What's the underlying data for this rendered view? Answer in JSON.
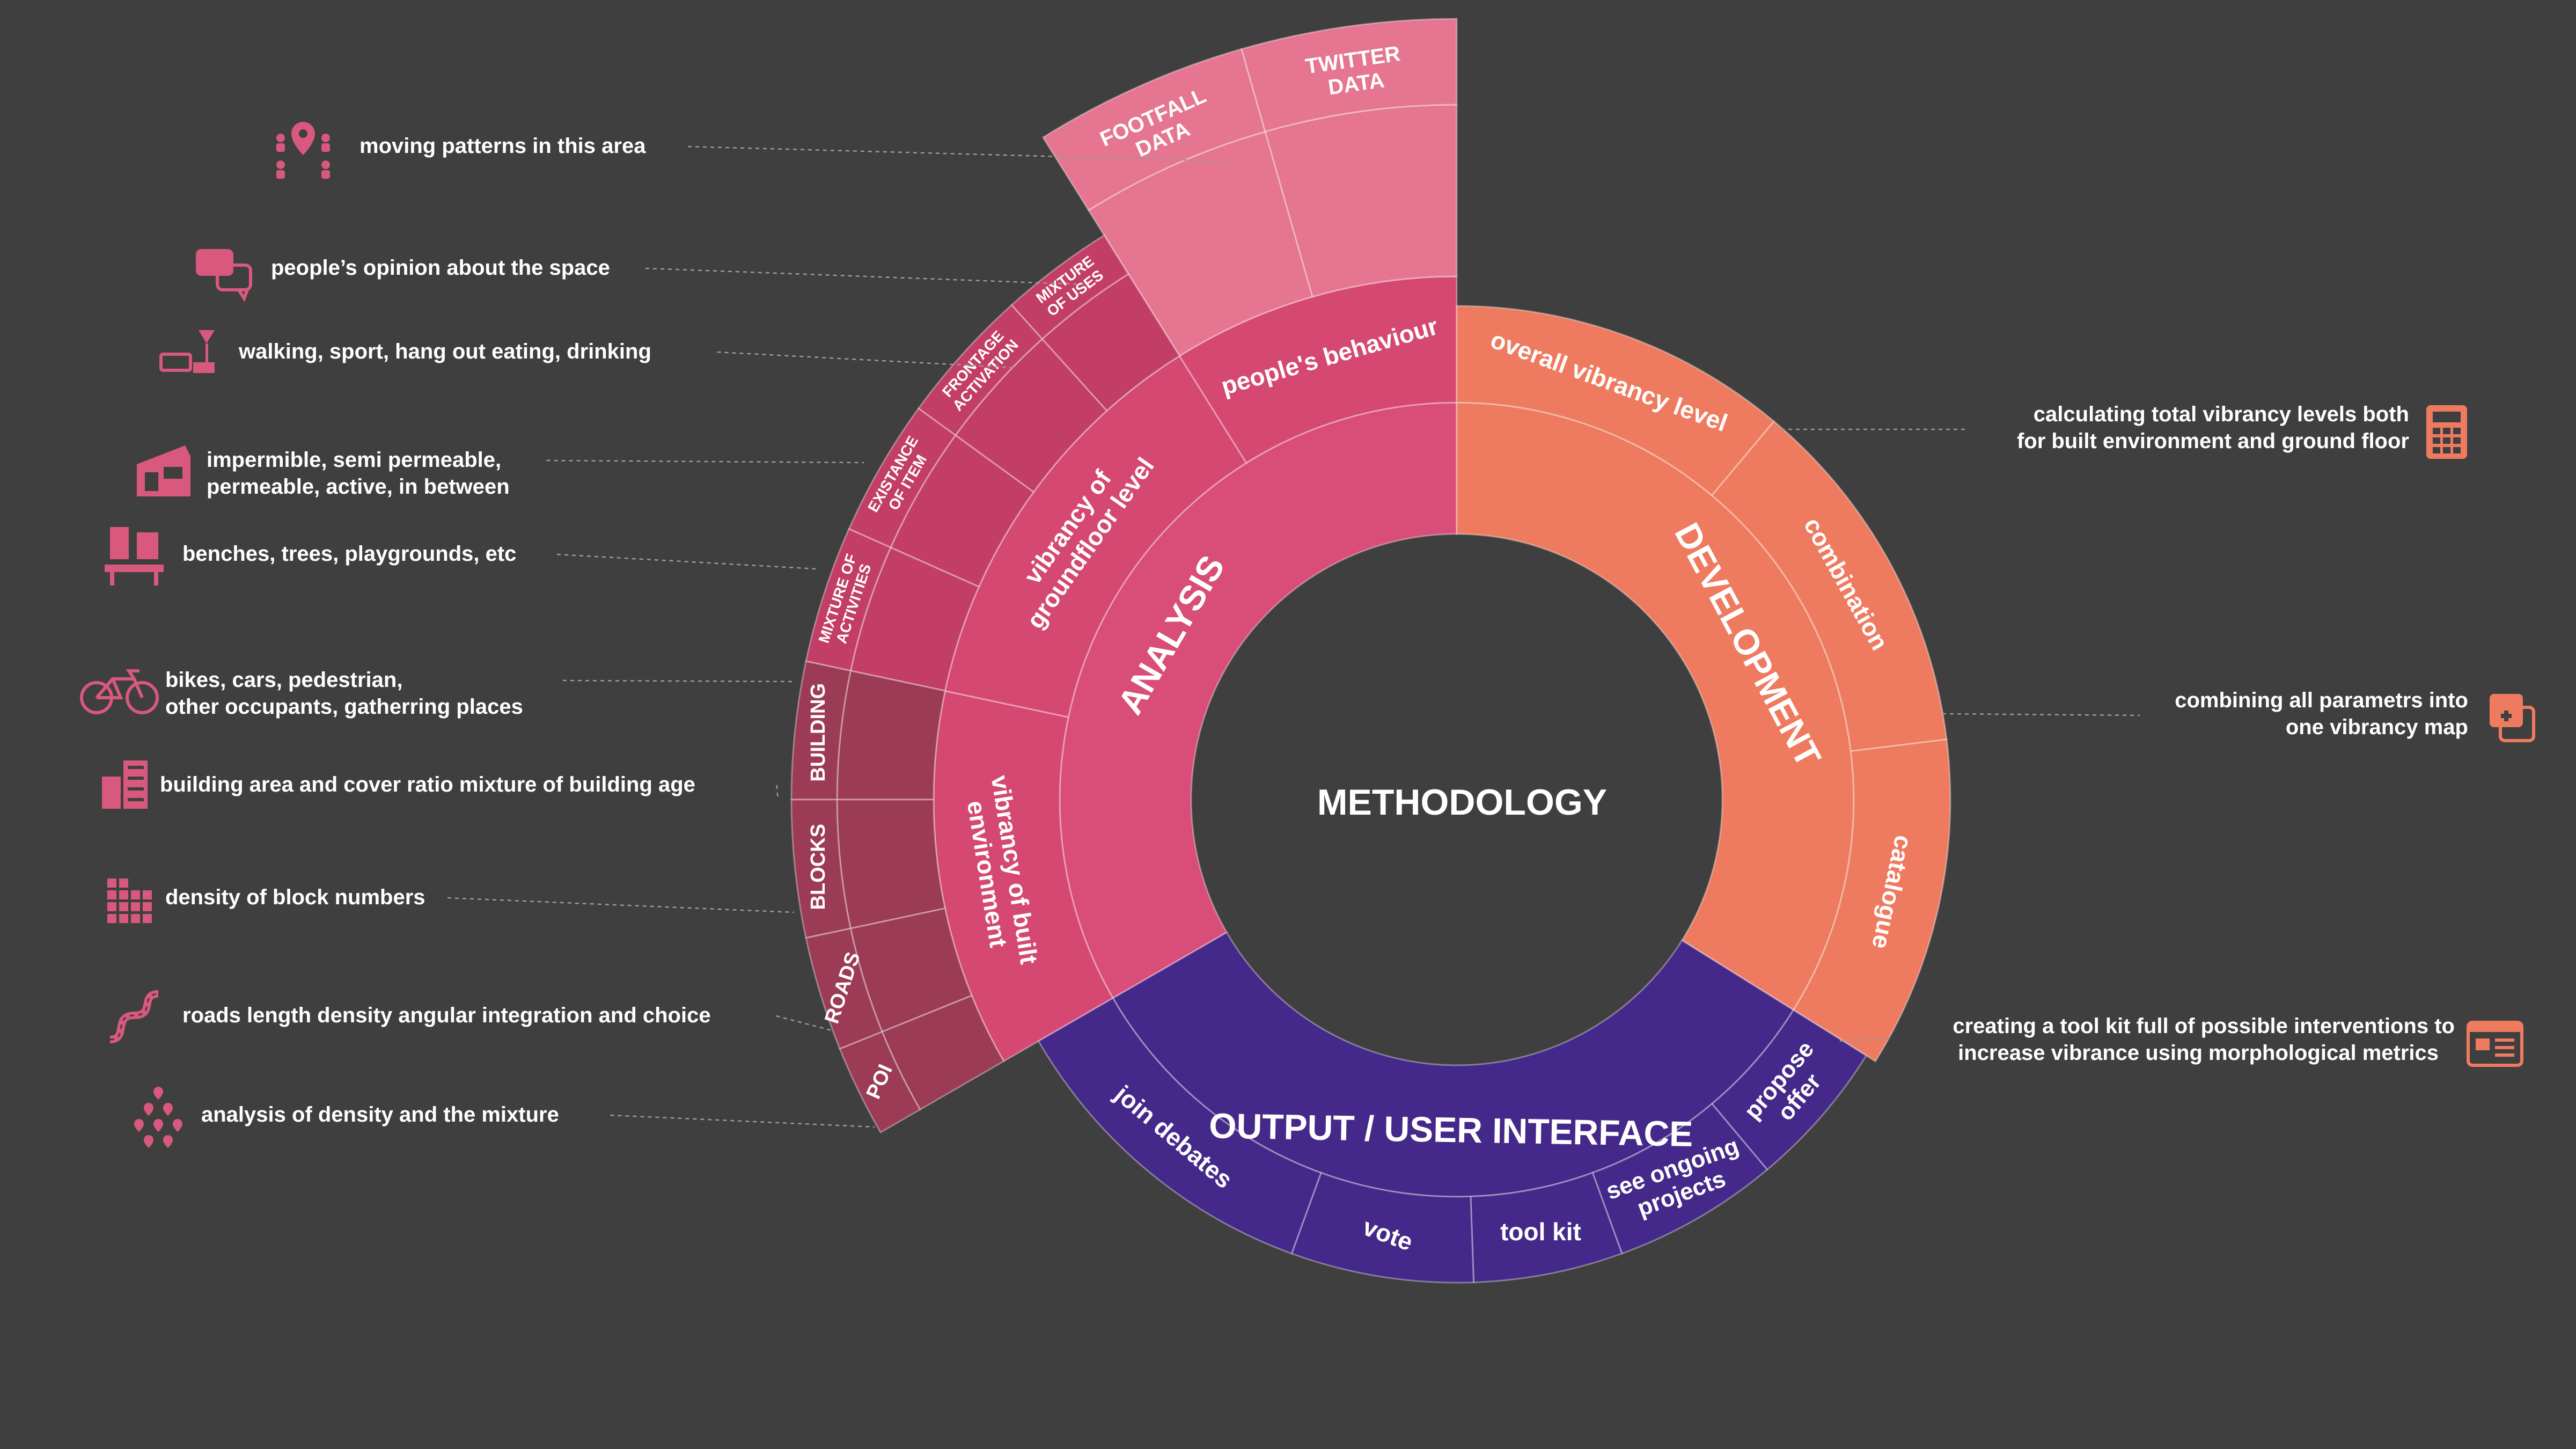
{
  "center": {
    "title": "METHODOLOGY"
  },
  "colors": {
    "background": "#3f3f3f",
    "analysis_inner": "#d94d79",
    "analysis_mid": "#d44872",
    "people_outer": "#e57590",
    "groundfloor_outer": "#c23e66",
    "built_outer": "#9c3b55",
    "development": "#ee7b5f",
    "output": "#45298a",
    "icon_left": "#d9587d",
    "icon_right": "#ee7b5f"
  },
  "rings": {
    "inner": [
      {
        "label": "ANALYSIS",
        "color": "#d94d79"
      },
      {
        "label": "DEVELOPMENT",
        "color": "#ee7b5f"
      },
      {
        "label": "OUTPUT / USER INTERFACE",
        "color": "#45298a"
      }
    ],
    "analysis_mid": [
      {
        "label": "people's behaviour"
      },
      {
        "label_lines": [
          "vibrancy of",
          "groundfloor level"
        ]
      },
      {
        "label_lines": [
          "vibrancy of built",
          "environment"
        ]
      }
    ],
    "analysis_outer": [
      {
        "label_lines": [
          "TWITTER",
          "DATA"
        ]
      },
      {
        "label_lines": [
          "FOOTFALL",
          "DATA"
        ]
      },
      {
        "label_lines": [
          "MIXTURE",
          "OF USES"
        ]
      },
      {
        "label_lines": [
          "FRONTAGE",
          "ACTIVATION"
        ]
      },
      {
        "label_lines": [
          "EXISTANCE",
          "OF ITEM"
        ]
      },
      {
        "label_lines": [
          "MIXTURE OF",
          "ACTIVITIES"
        ]
      },
      {
        "label_lines": [
          "BUILDING"
        ]
      },
      {
        "label_lines": [
          "BLOCKS"
        ]
      },
      {
        "label_lines": [
          "ROADS"
        ]
      },
      {
        "label_lines": [
          "POI"
        ]
      }
    ],
    "development": [
      {
        "label": "overall vibrancy level"
      },
      {
        "label": "combination"
      },
      {
        "label": "catalogue"
      }
    ],
    "output": [
      {
        "label": "join debates"
      },
      {
        "label": "vote"
      },
      {
        "label": "tool kit"
      },
      {
        "label_lines": [
          "see ongoing",
          "projects"
        ]
      },
      {
        "label_lines": [
          "propose",
          "offer"
        ]
      }
    ]
  },
  "annotations_left": [
    {
      "lines": [
        "moving patterns in this area"
      ],
      "icon": "location-people-icon"
    },
    {
      "lines": [
        "people’s opinion about the space"
      ],
      "icon": "speech-bubbles-icon"
    },
    {
      "lines": [
        "walking, sport, hang out eating, drinking"
      ],
      "icon": "food-drink-icon"
    },
    {
      "lines": [
        "impermible, semi permeable,",
        "permeable, active, in between"
      ],
      "icon": "storefront-icon"
    },
    {
      "lines": [
        "benches, trees, playgrounds, etc"
      ],
      "icon": "street-furniture-icon"
    },
    {
      "lines": [
        "bikes, cars, pedestrian,",
        "other occupants, gatherring places"
      ],
      "icon": "bicycle-icon"
    },
    {
      "lines": [
        "building area and cover ratio mixture of building age"
      ],
      "icon": "buildings-icon"
    },
    {
      "lines": [
        "density of block numbers"
      ],
      "icon": "blocks-grid-icon"
    },
    {
      "lines": [
        "roads length density angular integration and choice"
      ],
      "icon": "road-icon"
    },
    {
      "lines": [
        "analysis of density and the mixture"
      ],
      "icon": "poi-pins-icon"
    }
  ],
  "annotations_right": [
    {
      "lines": [
        "calculating total vibrancy levels both",
        "for built environment and ground floor"
      ],
      "icon": "calculator-icon"
    },
    {
      "lines": [
        "combining all parametrs into",
        "one vibrancy map"
      ],
      "icon": "combine-plus-icon"
    },
    {
      "lines": [
        "creating a tool kit full of possible interventions to",
        "increase vibrance using morphological metrics"
      ],
      "icon": "catalogue-list-icon"
    }
  ]
}
